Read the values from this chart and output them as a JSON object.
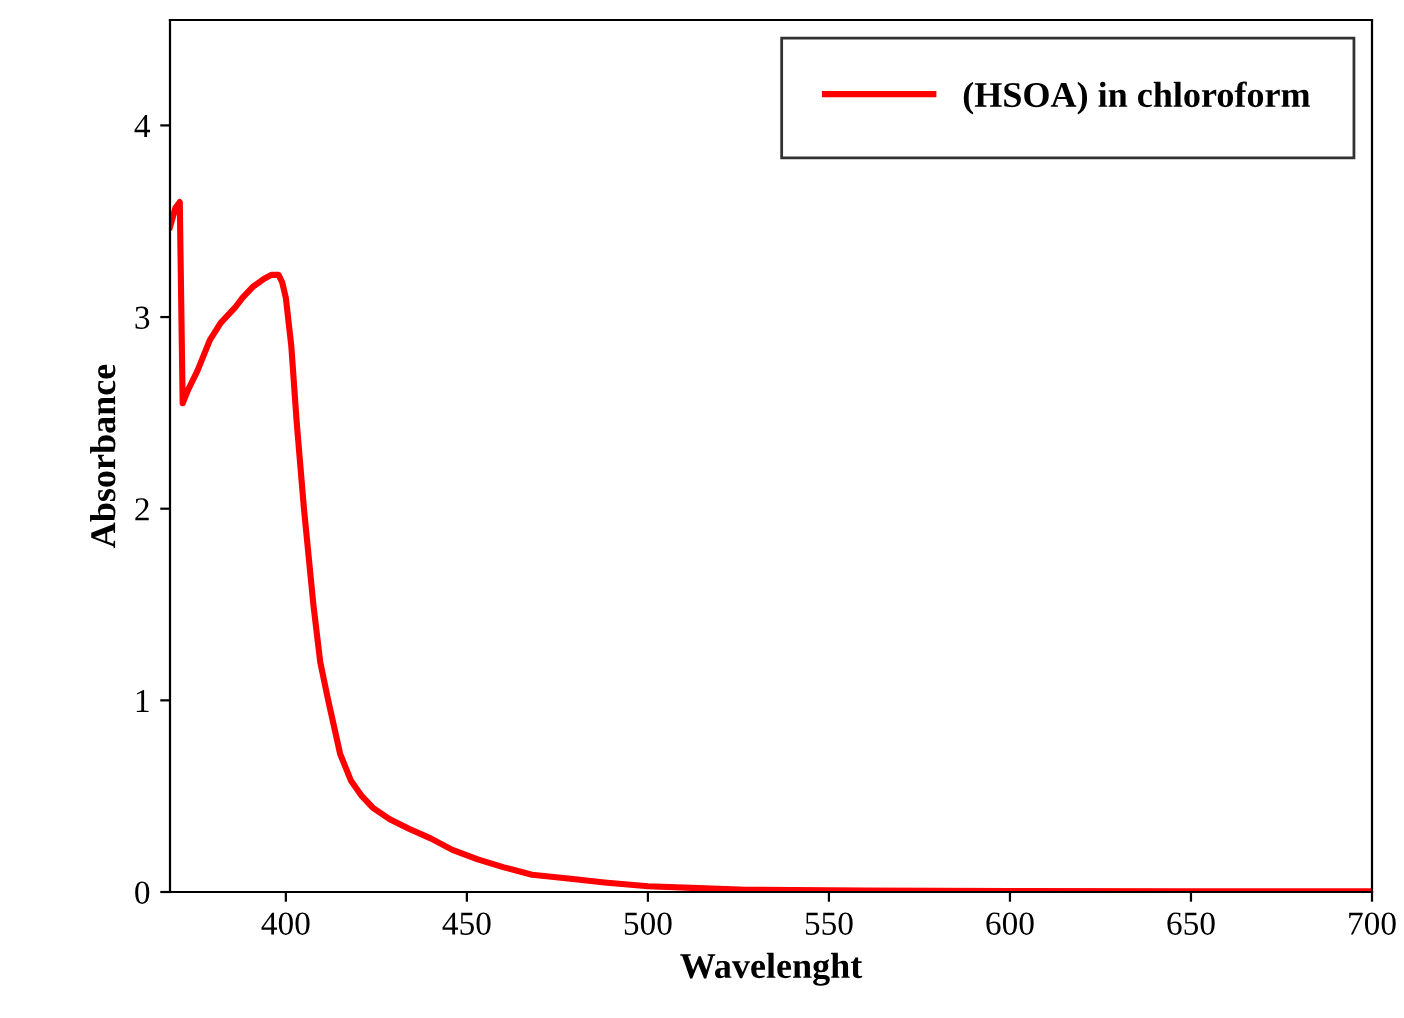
{
  "chart_data": {
    "type": "line",
    "xlabel": "Wavelenght",
    "ylabel": "Absorbance",
    "x": [
      368,
      369.5,
      370.7,
      371.5,
      373,
      375.6,
      379,
      382,
      386,
      388,
      391,
      394,
      396,
      398,
      399,
      400,
      401.5,
      403,
      405,
      407.6,
      409.5,
      411.7,
      415,
      418,
      421,
      424,
      428.7,
      434,
      440,
      446,
      453,
      460,
      468,
      478,
      488,
      500,
      514,
      527,
      540,
      560,
      600,
      650,
      700
    ],
    "series": [
      {
        "name": "(HSOA) in chloroform",
        "color": "#ff0000",
        "values": [
          3.47,
          3.57,
          3.6,
          2.55,
          2.62,
          2.72,
          2.88,
          2.97,
          3.05,
          3.1,
          3.16,
          3.2,
          3.22,
          3.22,
          3.18,
          3.1,
          2.85,
          2.45,
          2.0,
          1.5,
          1.2,
          1.0,
          0.72,
          0.58,
          0.5,
          0.44,
          0.38,
          0.33,
          0.28,
          0.22,
          0.17,
          0.13,
          0.09,
          0.07,
          0.05,
          0.03,
          0.02,
          0.012,
          0.01,
          0.007,
          0.005,
          0.004,
          0.003
        ]
      }
    ],
    "xlim": [
      368,
      700
    ],
    "xticks": [
      400,
      450,
      500,
      550,
      600,
      650,
      700
    ],
    "ylim": [
      0,
      4.55
    ],
    "yticks": [
      0,
      1,
      2,
      3,
      4
    ],
    "legend": "top right",
    "grid": false,
    "line_style": "solid",
    "marker": "none"
  }
}
